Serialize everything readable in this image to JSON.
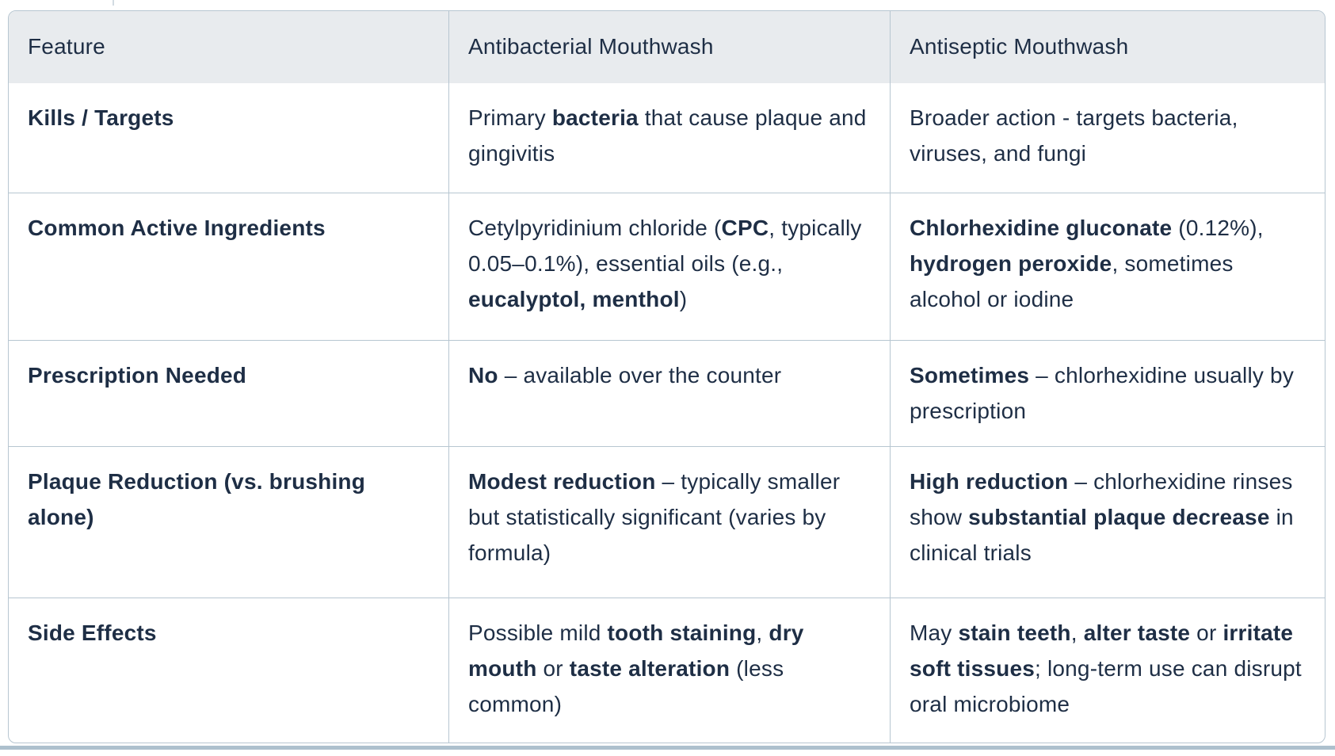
{
  "colors": {
    "text": "#1e2e45",
    "border": "#b7c6d1",
    "header_bg": "#e8ebee",
    "divider": "#adc0cd"
  },
  "table": {
    "headers": [
      "Feature",
      "Antibacterial Mouthwash",
      "Antiseptic Mouthwash"
    ],
    "rows": [
      {
        "cells": [
          [
            {
              "t": "Kills / Targets",
              "b": true
            }
          ],
          [
            {
              "t": "Primary ",
              "b": false
            },
            {
              "t": "bacteria",
              "b": true
            },
            {
              "t": " that cause plaque and gingivitis",
              "b": false
            }
          ],
          [
            {
              "t": "Broader action - targets bacteria, viruses, and fungi",
              "b": false
            }
          ]
        ]
      },
      {
        "cells": [
          [
            {
              "t": "Common Active Ingredients",
              "b": true
            }
          ],
          [
            {
              "t": "Cetylpyridinium chloride (",
              "b": false
            },
            {
              "t": "CPC",
              "b": true
            },
            {
              "t": ", typically 0.05–0.1%), essential oils (e.g., ",
              "b": false
            },
            {
              "t": "eucalyptol, menthol",
              "b": true
            },
            {
              "t": ")",
              "b": false
            }
          ],
          [
            {
              "t": "Chlorhexidine gluconate",
              "b": true
            },
            {
              "t": " (0.12%), ",
              "b": false
            },
            {
              "t": "hydrogen peroxide",
              "b": true
            },
            {
              "t": ", sometimes alcohol or iodine",
              "b": false
            }
          ]
        ]
      },
      {
        "cells": [
          [
            {
              "t": "Prescription Needed",
              "b": true
            }
          ],
          [
            {
              "t": "No",
              "b": true
            },
            {
              "t": " – available over the counter",
              "b": false
            }
          ],
          [
            {
              "t": "Sometimes",
              "b": true
            },
            {
              "t": " – chlorhexidine usually by prescription",
              "b": false
            }
          ]
        ]
      },
      {
        "cells": [
          [
            {
              "t": "Plaque Reduction (vs. brushing alone)",
              "b": true
            }
          ],
          [
            {
              "t": "Modest reduction",
              "b": true
            },
            {
              "t": " – typically smaller but statistically significant (varies by formula)",
              "b": false
            }
          ],
          [
            {
              "t": "High reduction",
              "b": true
            },
            {
              "t": " – chlorhexidine rinses show ",
              "b": false
            },
            {
              "t": "substantial plaque decrease",
              "b": true
            },
            {
              "t": " in clinical trials",
              "b": false
            }
          ]
        ]
      },
      {
        "cells": [
          [
            {
              "t": "Side Effects",
              "b": true
            }
          ],
          [
            {
              "t": "Possible mild ",
              "b": false
            },
            {
              "t": "tooth staining",
              "b": true
            },
            {
              "t": ", ",
              "b": false
            },
            {
              "t": "dry mouth",
              "b": true
            },
            {
              "t": " or ",
              "b": false
            },
            {
              "t": "taste alteration",
              "b": true
            },
            {
              "t": " (less common)",
              "b": false
            }
          ],
          [
            {
              "t": "May ",
              "b": false
            },
            {
              "t": "stain teeth",
              "b": true
            },
            {
              "t": ", ",
              "b": false
            },
            {
              "t": "alter taste",
              "b": true
            },
            {
              "t": " or ",
              "b": false
            },
            {
              "t": "irritate soft tissues",
              "b": true
            },
            {
              "t": "; long-term use can disrupt oral microbiome",
              "b": false
            }
          ]
        ]
      }
    ]
  }
}
